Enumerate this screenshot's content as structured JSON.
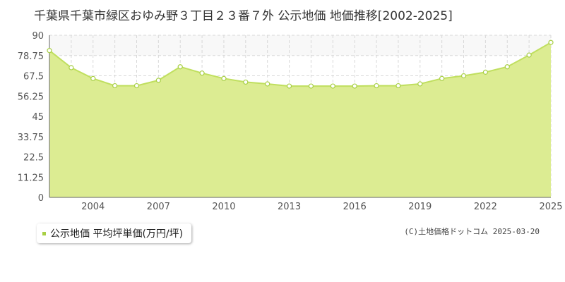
{
  "chart_data": {
    "type": "area",
    "title": "千葉県千葉市緑区おゆみ野３丁目２３番７外 公示地価 地価推移[2002-2025]",
    "x": [
      2002,
      2003,
      2004,
      2005,
      2006,
      2007,
      2008,
      2009,
      2010,
      2011,
      2012,
      2013,
      2014,
      2015,
      2016,
      2017,
      2018,
      2019,
      2020,
      2021,
      2022,
      2023,
      2024,
      2025
    ],
    "series": [
      {
        "name": "公示地価 平均坪単価(万円/坪)",
        "values": [
          81.5,
          72.0,
          66.0,
          62.0,
          62.0,
          65.0,
          72.5,
          69.0,
          66.0,
          64.0,
          63.0,
          61.8,
          61.8,
          61.8,
          61.8,
          62.0,
          62.0,
          63.0,
          66.0,
          67.5,
          69.5,
          72.5,
          79.0,
          86.0
        ]
      }
    ],
    "yticks": [
      "0",
      "11.25",
      "22.5",
      "33.75",
      "45",
      "56.25",
      "67.5",
      "78.75",
      "90"
    ],
    "xticks": [
      "2004",
      "2007",
      "2010",
      "2013",
      "2016",
      "2019",
      "2022",
      "2025"
    ],
    "ylim": [
      0,
      90
    ],
    "xlim": [
      2002,
      2025
    ],
    "grid": true,
    "legend_position": "bottom-left",
    "colors": {
      "fill": "#dcec92",
      "line": "#c0df5f",
      "marker_stroke": "#a8cf45",
      "legend": "#a8cf45"
    }
  },
  "copyright": "(C)土地価格ドットコム 2025-03-20"
}
